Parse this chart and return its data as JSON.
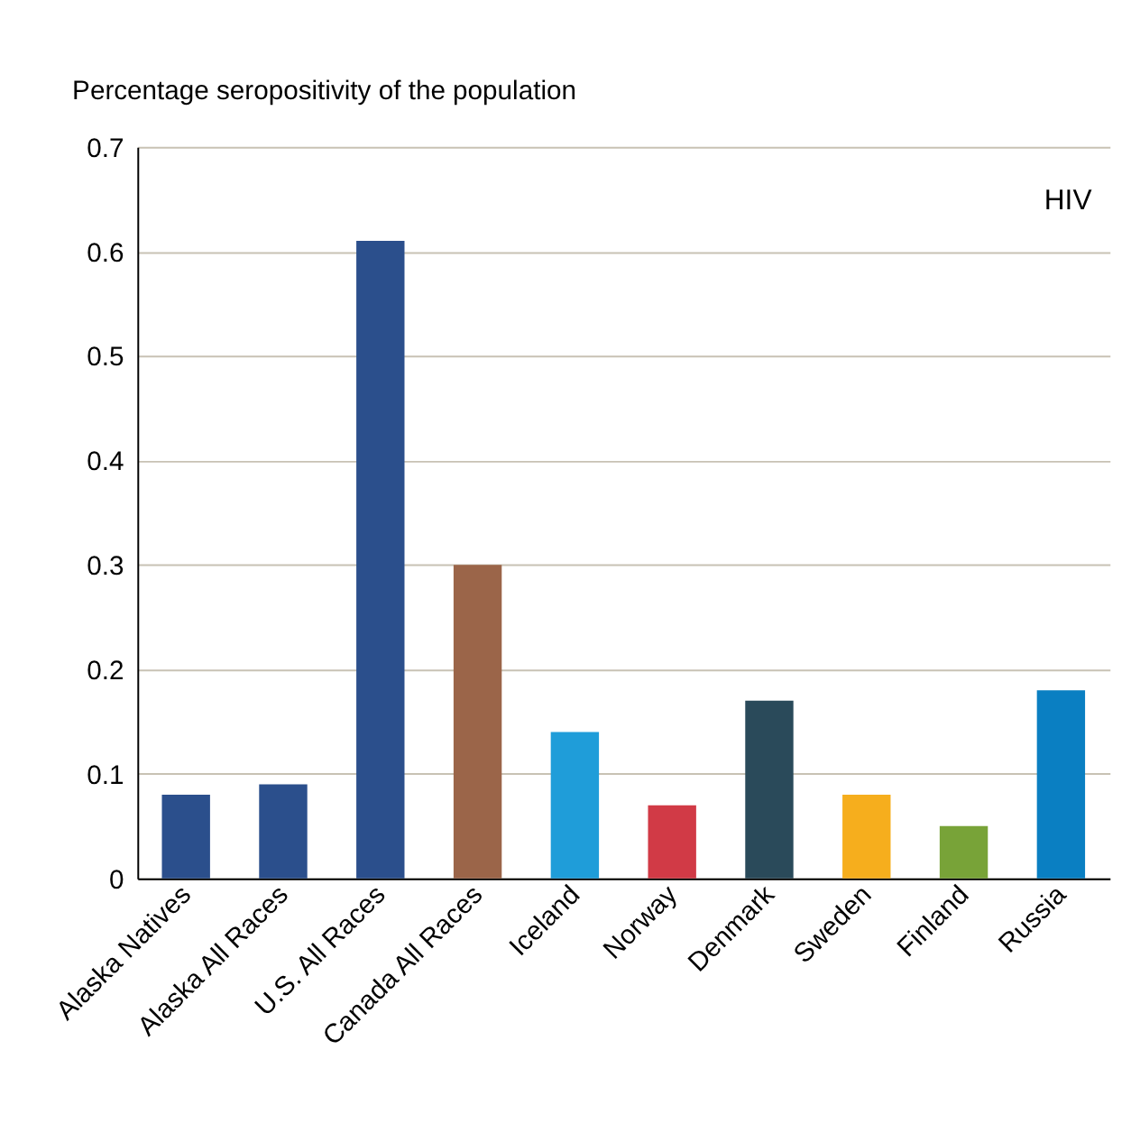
{
  "chart_data": {
    "type": "bar",
    "ylabel": "Percentage seropositivity of the population",
    "annotations": [
      "HIV"
    ],
    "categories": [
      "Alaska Natives",
      "Alaska All Races",
      "U.S. All Races",
      "Canada All Races",
      "Iceland",
      "Norway",
      "Denmark",
      "Sweden",
      "Finland",
      "Russia"
    ],
    "values": [
      0.08,
      0.09,
      0.61,
      0.3,
      0.14,
      0.07,
      0.17,
      0.08,
      0.05,
      0.18
    ],
    "colors": [
      "#2b4f8c",
      "#2b4f8c",
      "#2b4f8c",
      "#9b6549",
      "#1f9dd9",
      "#d13a46",
      "#2a4a5a",
      "#f6ae1d",
      "#78a338",
      "#0a7fc2"
    ],
    "ylim": [
      0,
      0.7
    ],
    "yticks": [
      0,
      0.1,
      0.2,
      0.3,
      0.4,
      0.5,
      0.6,
      0.7
    ],
    "grid": "y"
  }
}
